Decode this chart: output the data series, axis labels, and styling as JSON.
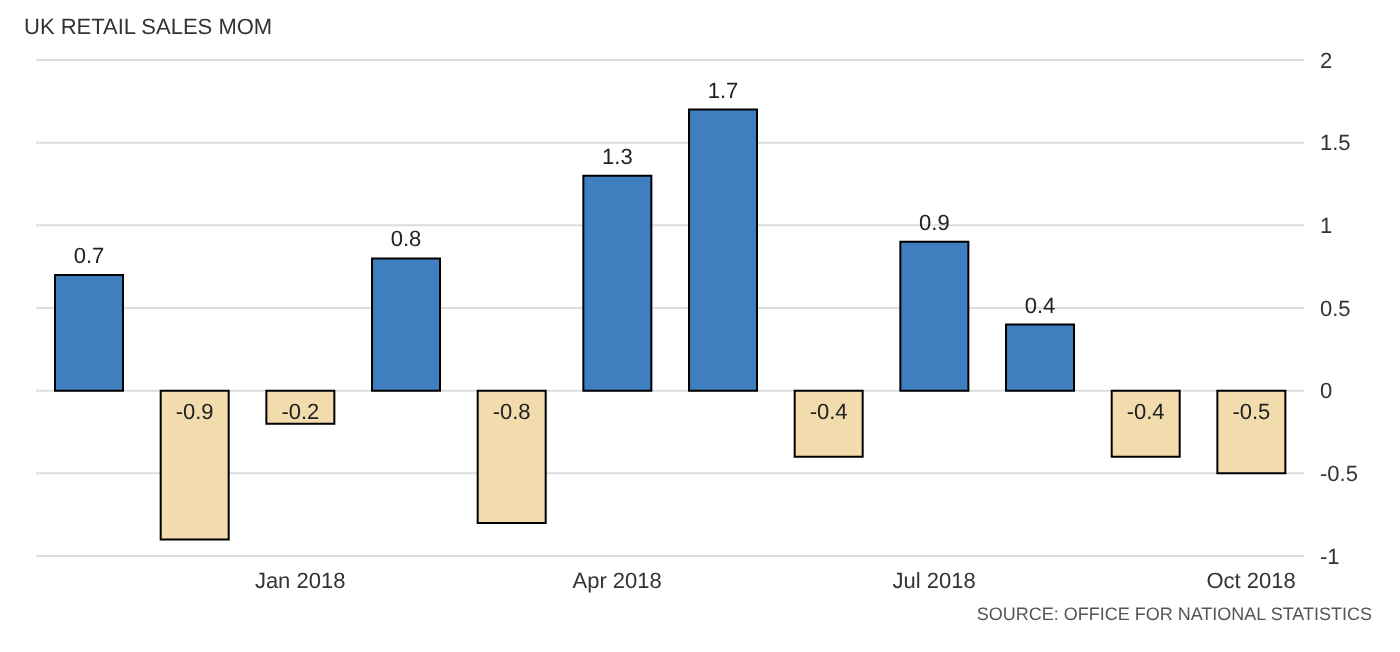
{
  "chart_data": {
    "type": "bar",
    "title": "UK RETAIL SALES MOM",
    "categories": [
      null,
      null,
      "Jan 2018",
      null,
      null,
      "Apr 2018",
      null,
      null,
      "Jul 2018",
      null,
      null,
      "Oct 2018"
    ],
    "values": [
      0.7,
      -0.9,
      -0.2,
      0.8,
      -0.8,
      1.3,
      1.7,
      -0.4,
      0.9,
      0.4,
      -0.4,
      -0.5
    ],
    "colors": [
      "#3f7fbf",
      "#f2dcae",
      "#f2dcae",
      "#3f7fbf",
      "#f2dcae",
      "#3f7fbf",
      "#3f7fbf",
      "#f2dcae",
      "#3f7fbf",
      "#3f7fbf",
      "#f2dcae",
      "#f2dcae"
    ],
    "ylim": [
      -1,
      2
    ],
    "yticks": [
      -1,
      -0.5,
      0,
      0.5,
      1,
      1.5,
      2
    ],
    "grid": "y",
    "data_labels": true,
    "annotations": [
      "SOURCE: OFFICE FOR NATIONAL STATISTICS"
    ]
  }
}
